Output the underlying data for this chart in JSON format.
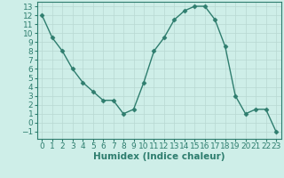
{
  "x": [
    0,
    1,
    2,
    3,
    4,
    5,
    6,
    7,
    8,
    9,
    10,
    11,
    12,
    13,
    14,
    15,
    16,
    17,
    18,
    19,
    20,
    21,
    22,
    23
  ],
  "y": [
    12,
    9.5,
    8,
    6,
    4.5,
    3.5,
    2.5,
    2.5,
    1,
    1.5,
    4.5,
    8,
    9.5,
    11.5,
    12.5,
    13,
    13,
    11.5,
    8.5,
    3,
    1,
    1.5,
    1.5,
    -1
  ],
  "line_color": "#2e7d6e",
  "marker_color": "#2e7d6e",
  "bg_color": "#ceeee8",
  "grid_color": "#b8d8d2",
  "xlabel": "Humidex (Indice chaleur)",
  "ylim": [
    -1.8,
    13.5
  ],
  "xlim": [
    -0.5,
    23.5
  ],
  "yticks": [
    -1,
    0,
    1,
    2,
    3,
    4,
    5,
    6,
    7,
    8,
    9,
    10,
    11,
    12,
    13
  ],
  "xticks": [
    0,
    1,
    2,
    3,
    4,
    5,
    6,
    7,
    8,
    9,
    10,
    11,
    12,
    13,
    14,
    15,
    16,
    17,
    18,
    19,
    20,
    21,
    22,
    23
  ],
  "xlabel_fontsize": 7.5,
  "tick_fontsize": 6.5,
  "linewidth": 1.0,
  "markersize": 2.5,
  "marker": "D"
}
